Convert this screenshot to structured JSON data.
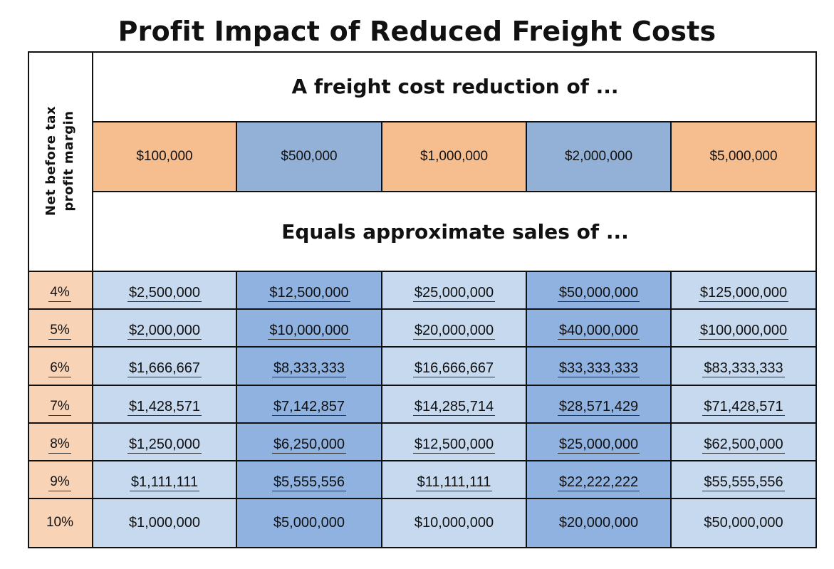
{
  "title": "Profit Impact of Reduced Freight Costs",
  "side_header": "Net before tax\nprofit margin",
  "top_band": "A freight cost reduction of ...",
  "mid_band": "Equals approximate sales of ...",
  "colors": {
    "header_orange": "#f6bd8e",
    "header_blue": "#93b1d7",
    "margin_cell": "#f9d3b6",
    "value_light": "#c6d9ef",
    "value_dark": "#8fb2e0"
  },
  "chart_data": {
    "type": "table",
    "title": "Profit Impact of Reduced Freight Costs",
    "columns": [
      "$100,000",
      "$500,000",
      "$1,000,000",
      "$2,000,000",
      "$5,000,000"
    ],
    "rows": [
      {
        "margin": "4%",
        "values": [
          "$2,500,000",
          "$12,500,000",
          "$25,000,000",
          "$50,000,000",
          "$125,000,000"
        ]
      },
      {
        "margin": "5%",
        "values": [
          "$2,000,000",
          "$10,000,000",
          "$20,000,000",
          "$40,000,000",
          "$100,000,000"
        ]
      },
      {
        "margin": "6%",
        "values": [
          "$1,666,667",
          "$8,333,333",
          "$16,666,667",
          "$33,333,333",
          "$83,333,333"
        ]
      },
      {
        "margin": "7%",
        "values": [
          "$1,428,571",
          "$7,142,857",
          "$14,285,714",
          "$28,571,429",
          "$71,428,571"
        ]
      },
      {
        "margin": "8%",
        "values": [
          "$1,250,000",
          "$6,250,000",
          "$12,500,000",
          "$25,000,000",
          "$62,500,000"
        ]
      },
      {
        "margin": "9%",
        "values": [
          "$1,111,111",
          "$5,555,556",
          "$11,111,111",
          "$22,222,222",
          "$55,555,556"
        ]
      },
      {
        "margin": "10%",
        "values": [
          "$1,000,000",
          "$5,000,000",
          "$10,000,000",
          "$20,000,000",
          "$50,000,000"
        ]
      }
    ]
  }
}
